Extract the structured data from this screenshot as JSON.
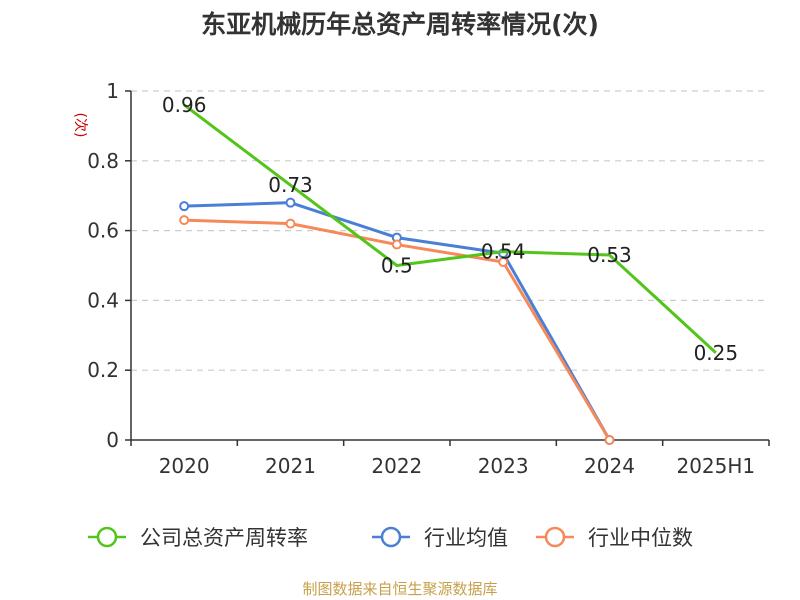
{
  "chart_data": {
    "type": "line",
    "title": "东亚机械历年总资产周转率情况(次)",
    "ylabel": "(次)",
    "xlabel": "",
    "categories": [
      "2020",
      "2021",
      "2022",
      "2023",
      "2024",
      "2025H1"
    ],
    "ylim": [
      0,
      1
    ],
    "yticks": [
      0,
      0.2,
      0.4,
      0.6,
      0.8,
      1
    ],
    "ytick_labels": [
      "0",
      "0.2",
      "0.4",
      "0.6",
      "0.8",
      "1"
    ],
    "grid": true,
    "legend_position": "bottom",
    "series": [
      {
        "name": "公司总资产周转率",
        "color": "#52c41a",
        "values": [
          0.96,
          0.73,
          0.5,
          0.54,
          0.53,
          0.25
        ],
        "labels": [
          "0.96",
          "0.73",
          "0.5",
          "0.54",
          "0.53",
          "0.25"
        ],
        "show_markers": false
      },
      {
        "name": "行业均值",
        "color": "#4a7fd6",
        "values": [
          0.67,
          0.68,
          0.58,
          0.535,
          0.0,
          null
        ],
        "labels": null,
        "show_markers": true
      },
      {
        "name": "行业中位数",
        "color": "#f5895a",
        "values": [
          0.63,
          0.62,
          0.56,
          0.51,
          0.0,
          null
        ],
        "labels": null,
        "show_markers": true
      }
    ],
    "source": "制图数据来自恒生聚源数据库"
  }
}
